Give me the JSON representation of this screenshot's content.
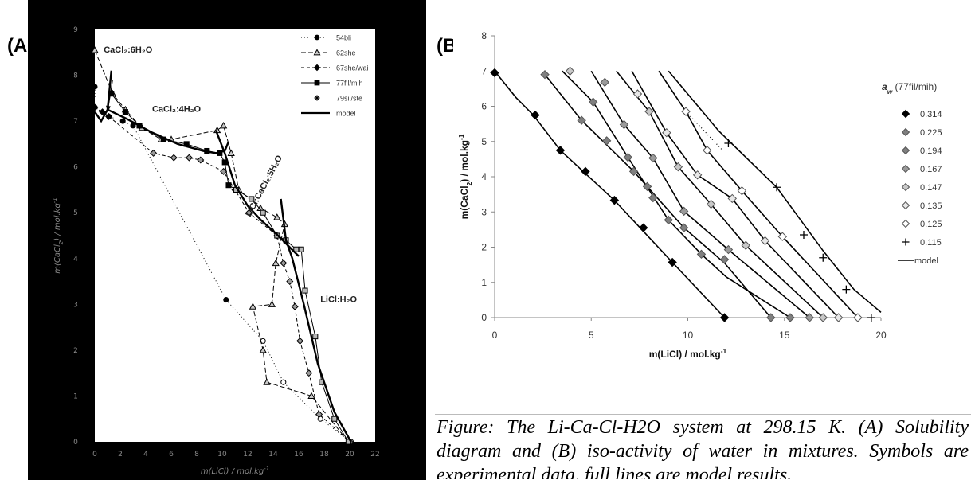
{
  "panels": {
    "a_label": "(A",
    "b_label": "(B)"
  },
  "caption": "Figure: The Li-Ca-Cl-H2O system at 298.15 K. (A) Solubility diagram and (B) iso-activity of water in mixtures. Symbols are experimental data, full lines are model results.",
  "colors": {
    "panel_a_background": "#000000",
    "panel_b_background": "#ffffff",
    "marker_dark": "#000000",
    "marker_mid": "#7f7f7f",
    "marker_light": "#c8c8c8",
    "marker_white": "#ffffff"
  },
  "chart_data": [
    {
      "type": "scatter",
      "title": "",
      "xlabel": "m(LiCl) / mol.kg",
      "xlabel_sup": "-1",
      "ylabel": "m(CaCl2) / mol.kg",
      "ylabel_sup": "-1",
      "xlim": [
        0,
        22
      ],
      "ylim": [
        0,
        9
      ],
      "xticks": [
        "0",
        "2",
        "4",
        "6",
        "8",
        "10",
        "12",
        "14",
        "16",
        "18",
        "20",
        "22"
      ],
      "yticks": [
        "0",
        "1",
        "2",
        "3",
        "4",
        "5",
        "6",
        "7",
        "8",
        "9"
      ],
      "annotations": [
        {
          "label": "CaCl₂:6H₂O",
          "x": 0.7,
          "y": 8.5
        },
        {
          "label": "CaCl₂:4H₂O",
          "x": 4.5,
          "y": 7.2
        },
        {
          "label": "LiCl:CaCl₂:5H₂O",
          "x": 12.2,
          "y": 4.9,
          "rotate": -62
        },
        {
          "label": "LiCl:H₂O",
          "x": 17.7,
          "y": 3.05
        }
      ],
      "arrow": {
        "from": [
          1.4,
          7.9
        ],
        "to": [
          1.0,
          7.2
        ]
      },
      "series": [
        {
          "name": "54bli",
          "marker": "circle",
          "dash": "1,3",
          "points": [
            [
              0,
              7.75
            ],
            [
              0,
              7.3
            ],
            [
              1.1,
              7.1
            ],
            [
              2.2,
              7.0
            ],
            [
              3.0,
              6.9
            ],
            [
              10.3,
              3.1
            ],
            [
              13.2,
              2.2
            ],
            [
              14.8,
              1.3
            ],
            [
              17.7,
              0.5
            ],
            [
              20.1,
              0.0
            ]
          ],
          "hollow_from": 6
        },
        {
          "name": "62she",
          "marker": "triangle",
          "dash": "6,3",
          "points": [
            [
              0,
              8.55
            ],
            [
              1.4,
              7.6
            ],
            [
              2.4,
              7.25
            ],
            [
              3.7,
              6.85
            ],
            [
              5.2,
              6.6
            ],
            [
              6.0,
              6.6
            ],
            [
              9.6,
              6.8
            ],
            [
              10.1,
              6.9
            ],
            [
              10.7,
              6.3
            ],
            [
              11.3,
              5.5
            ],
            [
              13.0,
              5.1
            ],
            [
              14.3,
              4.9
            ],
            [
              14.9,
              4.75
            ],
            [
              14.2,
              3.9
            ],
            [
              13.9,
              3.0
            ],
            [
              12.4,
              2.95
            ],
            [
              13.2,
              2.0
            ],
            [
              13.5,
              1.3
            ],
            [
              17.0,
              1.0
            ],
            [
              19.9,
              0.0
            ]
          ]
        },
        {
          "name": "67she/wai",
          "marker": "diamond",
          "dash": "4,3",
          "points": [
            [
              0,
              7.3
            ],
            [
              0.6,
              7.2
            ],
            [
              1.1,
              7.1
            ],
            [
              4.6,
              6.3
            ],
            [
              6.2,
              6.2
            ],
            [
              7.4,
              6.2
            ],
            [
              8.3,
              6.15
            ],
            [
              10.1,
              5.9
            ],
            [
              11.0,
              5.5
            ],
            [
              12.1,
              5.0
            ],
            [
              14.3,
              4.5
            ],
            [
              14.8,
              3.9
            ],
            [
              15.3,
              3.5
            ],
            [
              15.7,
              2.95
            ],
            [
              16.1,
              2.2
            ],
            [
              16.8,
              1.5
            ],
            [
              17.6,
              0.6
            ],
            [
              20.0,
              0.0
            ]
          ]
        },
        {
          "name": "77fil/mih",
          "marker": "square",
          "dash": "",
          "points": [
            [
              1.3,
              7.6
            ],
            [
              2.4,
              7.2
            ],
            [
              3.5,
              6.9
            ],
            [
              5.4,
              6.6
            ],
            [
              7.2,
              6.5
            ],
            [
              8.8,
              6.35
            ],
            [
              9.8,
              6.3
            ],
            [
              10.2,
              6.1
            ],
            [
              10.5,
              5.6
            ],
            [
              11.1,
              5.5
            ],
            [
              12.3,
              5.3
            ],
            [
              13.2,
              5.0
            ],
            [
              14.3,
              4.5
            ],
            [
              15.0,
              4.4
            ],
            [
              15.8,
              4.2
            ],
            [
              16.2,
              4.2
            ],
            [
              16.5,
              3.3
            ],
            [
              17.3,
              2.3
            ],
            [
              17.8,
              1.3
            ],
            [
              18.8,
              0.5
            ],
            [
              19.9,
              0.0
            ]
          ]
        },
        {
          "name": "79sil/ste",
          "marker": "star",
          "dash": "",
          "points": []
        },
        {
          "name": "model",
          "marker": "none",
          "dash": "",
          "bold": true,
          "points": []
        }
      ],
      "legend": {
        "position": "top-right"
      }
    },
    {
      "type": "scatter",
      "title": "",
      "xlabel": "m(LiCl) / mol.kg",
      "xlabel_sup": "-1",
      "ylabel": "m(CaCl2) / mol.kg",
      "ylabel_sup": "-1",
      "xlim": [
        0,
        20
      ],
      "ylim": [
        0,
        8
      ],
      "xticks": [
        "0",
        "5",
        "10",
        "15",
        "20"
      ],
      "yticks": [
        "0",
        "1",
        "2",
        "3",
        "4",
        "5",
        "6",
        "7",
        "8"
      ],
      "legend": {
        "title": "a",
        "title_sub": "w",
        "title_suffix": " (77fil/mih)",
        "position": "right"
      },
      "series": [
        {
          "name": "0.314",
          "marker": "diamond",
          "fill": "#000000",
          "points": [
            [
              0,
              6.95
            ],
            [
              2.1,
              5.75
            ],
            [
              3.4,
              4.75
            ],
            [
              4.7,
              4.15
            ],
            [
              6.2,
              3.33
            ],
            [
              7.7,
              2.55
            ],
            [
              9.2,
              1.57
            ],
            [
              11.9,
              0.0
            ]
          ]
        },
        {
          "name": "0.225",
          "marker": "diamond",
          "fill": "#7f7f7f",
          "points": [
            [
              2.6,
              6.9
            ],
            [
              4.5,
              5.6
            ],
            [
              5.8,
              5.02
            ],
            [
              7.2,
              4.15
            ],
            [
              8.2,
              3.4
            ],
            [
              9.8,
              2.55
            ],
            [
              11.9,
              1.65
            ],
            [
              14.3,
              0.0
            ]
          ]
        },
        {
          "name": "0.194",
          "marker": "diamond",
          "fill": "#7f7f7f",
          "points": [
            [
              5.1,
              6.12
            ],
            [
              6.9,
              4.55
            ],
            [
              7.9,
              3.72
            ],
            [
              9.0,
              2.77
            ],
            [
              10.7,
              1.8
            ],
            [
              15.3,
              0.0
            ]
          ]
        },
        {
          "name": "0.167",
          "marker": "diamond",
          "fill": "#9a9a9a",
          "points": [
            [
              5.7,
              6.68
            ],
            [
              6.7,
              5.48
            ],
            [
              8.2,
              4.53
            ],
            [
              9.8,
              3.02
            ],
            [
              12.1,
              1.93
            ],
            [
              16.3,
              0.0
            ]
          ]
        },
        {
          "name": "0.147",
          "marker": "diamond",
          "fill": "#c8c8c8",
          "points": [
            [
              3.9,
              7.0
            ],
            [
              8.0,
              5.85
            ],
            [
              9.5,
              4.28
            ],
            [
              11.2,
              3.22
            ],
            [
              13.0,
              2.05
            ],
            [
              17.0,
              0.0
            ]
          ]
        },
        {
          "name": "0.135",
          "marker": "diamond",
          "fill": "#e8e8e8",
          "points": [
            [
              7.4,
              6.35
            ],
            [
              8.9,
              5.25
            ],
            [
              10.5,
              4.05
            ],
            [
              12.3,
              3.38
            ],
            [
              14.0,
              2.18
            ],
            [
              17.8,
              0.0
            ]
          ]
        },
        {
          "name": "0.125",
          "marker": "diamond",
          "fill": "#ffffff",
          "points": [
            [
              9.9,
              5.85
            ],
            [
              11.0,
              4.75
            ],
            [
              12.8,
              3.6
            ],
            [
              14.9,
              2.3
            ],
            [
              18.8,
              0.0
            ]
          ]
        },
        {
          "name": "0.115",
          "marker": "plus",
          "fill": "none",
          "points": [
            [
              12.1,
              4.95
            ],
            [
              14.6,
              3.7
            ],
            [
              16.0,
              2.35
            ],
            [
              17.0,
              1.7
            ],
            [
              18.2,
              0.8
            ],
            [
              19.5,
              0.0
            ]
          ]
        },
        {
          "name": "model",
          "marker": "none",
          "fill": "none",
          "points": []
        }
      ]
    }
  ]
}
